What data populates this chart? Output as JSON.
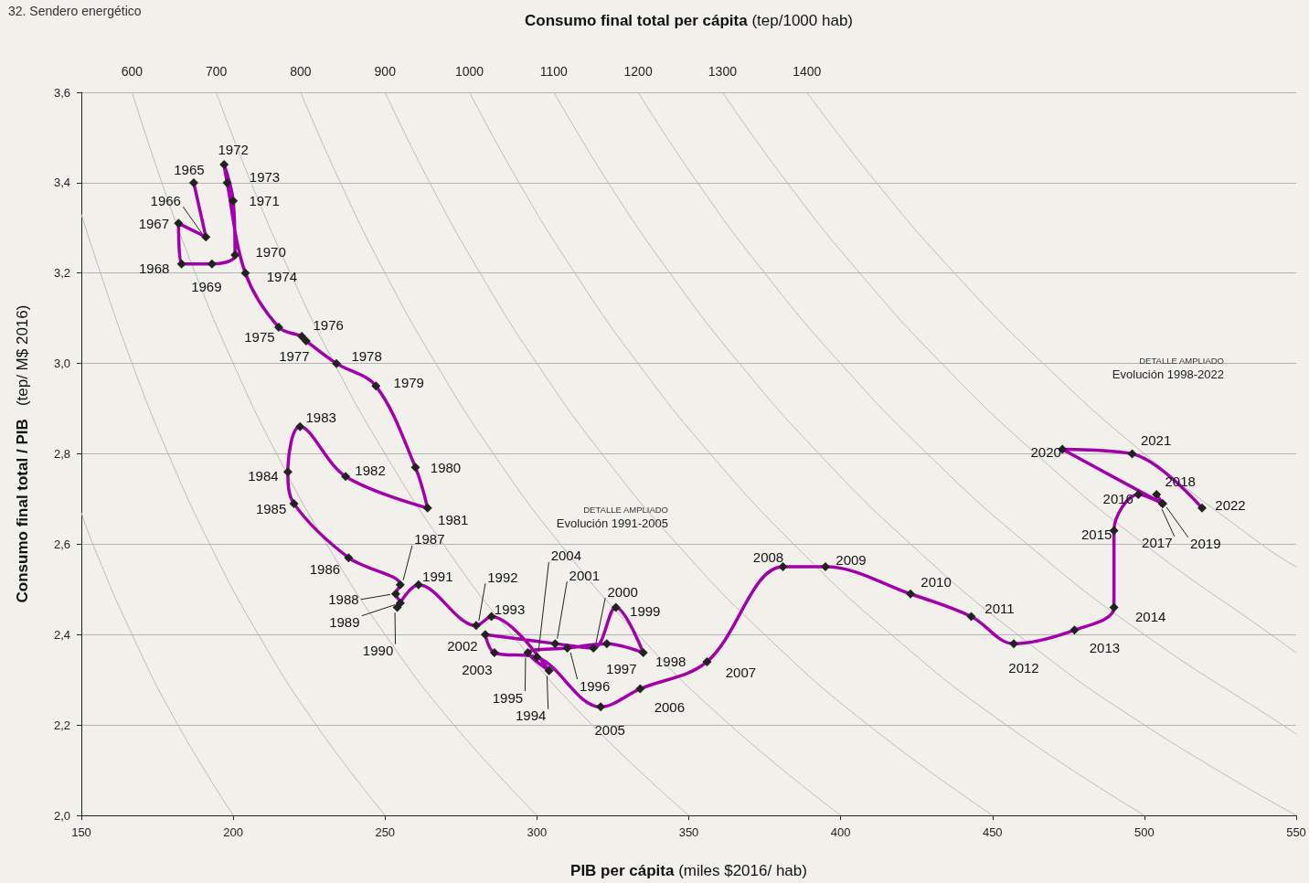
{
  "chart_data": {
    "type": "line",
    "title": "32. Sendero energético",
    "xlabel": "PIB per cápita (miles $2016/ hab)",
    "ylabel": "Consumo final total / PIB   (tep/ M$ 2016)",
    "x2label": "Consumo final total per cápita (tep/1000 hab)",
    "xlim": [
      150,
      550
    ],
    "xticks": [
      150,
      200,
      250,
      300,
      350,
      400,
      450,
      500,
      550
    ],
    "x2lim": [
      540,
      1980
    ],
    "x2ticks": [
      600,
      700,
      800,
      900,
      1000,
      1100,
      1200,
      1300,
      1400
    ],
    "ylim": [
      2.0,
      3.6
    ],
    "yticks": [
      {
        "value": 2.0,
        "label": "2,0"
      },
      {
        "value": 2.2,
        "label": "2,2"
      },
      {
        "value": 2.4,
        "label": "2,4"
      },
      {
        "value": 2.6,
        "label": "2,6"
      },
      {
        "value": 2.8,
        "label": "2,8"
      },
      {
        "value": 3.0,
        "label": "3,0"
      },
      {
        "value": 3.2,
        "label": "3,2"
      },
      {
        "value": 3.4,
        "label": "3,4"
      },
      {
        "value": 3.6,
        "label": "3,6"
      }
    ],
    "grid": "y",
    "marker": "diamond",
    "line_style": "solid",
    "annotations": [
      "DETALLE AMPLIADO\nEvolución 1991-2005",
      "DETALLE AMPLIADO\nEvolución 1998-2022",
      {
        "text": "1965",
        "x": 187,
        "y": 3.4
      },
      {
        "text": "1966",
        "x": 191,
        "y": 3.28
      },
      {
        "text": "1967",
        "x": 182,
        "y": 3.31
      },
      {
        "text": "1968",
        "x": 183,
        "y": 3.22
      },
      {
        "text": "1969",
        "x": 193,
        "y": 3.22
      },
      {
        "text": "1970",
        "x": 200.6,
        "y": 3.24
      },
      {
        "text": "1971",
        "x": 200,
        "y": 3.36
      },
      {
        "text": "1972",
        "x": 197,
        "y": 3.44
      },
      {
        "text": "1973",
        "x": 198,
        "y": 3.4
      },
      {
        "text": "1974",
        "x": 204,
        "y": 3.2
      },
      {
        "text": "1975",
        "x": 215,
        "y": 3.08
      },
      {
        "text": "1976",
        "x": 222.6,
        "y": 3.06
      },
      {
        "text": "1977",
        "x": 224,
        "y": 3.05
      },
      {
        "text": "1978",
        "x": 234,
        "y": 3.0
      },
      {
        "text": "1979",
        "x": 247,
        "y": 2.95
      },
      {
        "text": "1980",
        "x": 260,
        "y": 2.77
      },
      {
        "text": "1981",
        "x": 264,
        "y": 2.68
      },
      {
        "text": "1982",
        "x": 237,
        "y": 2.75
      },
      {
        "text": "1983",
        "x": 222,
        "y": 2.86
      },
      {
        "text": "1984",
        "x": 218,
        "y": 2.76
      },
      {
        "text": "1985",
        "x": 220,
        "y": 2.69
      },
      {
        "text": "1986",
        "x": 238,
        "y": 2.57
      },
      {
        "text": "1987",
        "x": 255,
        "y": 2.51
      },
      {
        "text": "1988",
        "x": 253.5,
        "y": 2.49
      },
      {
        "text": "1989",
        "x": 255,
        "y": 2.47
      },
      {
        "text": "1990",
        "x": 254,
        "y": 2.46
      },
      {
        "text": "1991",
        "x": 261,
        "y": 2.51
      },
      {
        "text": "1992",
        "x": 280,
        "y": 2.42
      },
      {
        "text": "1993",
        "x": 285,
        "y": 2.44
      },
      {
        "text": "1994",
        "x": 304,
        "y": 2.32
      },
      {
        "text": "1995",
        "x": 297,
        "y": 2.36
      },
      {
        "text": "1996",
        "x": 310,
        "y": 2.37
      },
      {
        "text": "1997",
        "x": 323,
        "y": 2.38
      },
      {
        "text": "1998",
        "x": 335,
        "y": 2.36
      },
      {
        "text": "1999",
        "x": 326,
        "y": 2.46
      },
      {
        "text": "2000",
        "x": 318.6,
        "y": 2.37
      },
      {
        "text": "2001",
        "x": 306,
        "y": 2.38
      },
      {
        "text": "2002",
        "x": 283,
        "y": 2.4
      },
      {
        "text": "2003",
        "x": 286,
        "y": 2.36
      },
      {
        "text": "2004",
        "x": 300,
        "y": 2.35
      },
      {
        "text": "2005",
        "x": 321,
        "y": 2.24
      },
      {
        "text": "2006",
        "x": 334,
        "y": 2.28
      },
      {
        "text": "2007",
        "x": 356,
        "y": 2.34
      },
      {
        "text": "2008",
        "x": 381,
        "y": 2.55
      },
      {
        "text": "2009",
        "x": 395,
        "y": 2.55
      },
      {
        "text": "2010",
        "x": 423,
        "y": 2.49
      },
      {
        "text": "2011",
        "x": 443,
        "y": 2.44
      },
      {
        "text": "2012",
        "x": 457,
        "y": 2.38
      },
      {
        "text": "2013",
        "x": 477,
        "y": 2.41
      },
      {
        "text": "2014",
        "x": 490,
        "y": 2.46
      },
      {
        "text": "2015",
        "x": 490,
        "y": 2.63
      },
      {
        "text": "2016",
        "x": 498,
        "y": 2.71
      },
      {
        "text": "2017",
        "x": 506,
        "y": 2.69
      },
      {
        "text": "2018",
        "x": 504,
        "y": 2.71
      },
      {
        "text": "2019",
        "x": 506,
        "y": 2.69
      },
      {
        "text": "2020",
        "x": 473,
        "y": 2.81
      },
      {
        "text": "2021",
        "x": 496,
        "y": 2.8
      },
      {
        "text": "2022",
        "x": 519,
        "y": 2.68
      }
    ],
    "series": [
      {
        "color": "#bbbbbb",
        "marker": "none",
        "x": [
          150,
          153.8,
          166.7,
          181.8,
          200
        ],
        "values": [
          2.67,
          2.6,
          2.4,
          2.2,
          2.0
        ]
      },
      {
        "color": "#bbbbbb",
        "marker": "none",
        "x": [
          150,
          156.3,
          166.7,
          178.6,
          192.3,
          208.3,
          227.3,
          250
        ],
        "values": [
          3.33,
          3.2,
          3.0,
          2.8,
          2.6,
          2.4,
          2.2,
          2.0
        ]
      },
      {
        "color": "#bbbbbb",
        "marker": "none",
        "x": [
          166.7,
          176.5,
          187.5,
          200,
          214.3,
          230.8,
          250,
          272.7,
          300
        ],
        "values": [
          3.6,
          3.4,
          3.2,
          3.0,
          2.8,
          2.6,
          2.4,
          2.2,
          2.0
        ]
      },
      {
        "color": "#bbbbbb",
        "marker": "none",
        "x": [
          194.4,
          205.9,
          218.8,
          233.3,
          250,
          269.2,
          291.7,
          318.2,
          350
        ],
        "values": [
          3.6,
          3.4,
          3.2,
          3.0,
          2.8,
          2.6,
          2.4,
          2.2,
          2.0
        ]
      },
      {
        "color": "#bbbbbb",
        "marker": "none",
        "x": [
          222.2,
          235.3,
          250,
          266.7,
          285.7,
          307.7,
          333.3,
          363.6,
          400
        ],
        "values": [
          3.6,
          3.4,
          3.2,
          3.0,
          2.8,
          2.6,
          2.4,
          2.2,
          2.0
        ]
      },
      {
        "color": "#bbbbbb",
        "marker": "none",
        "x": [
          250,
          264.7,
          281.3,
          300,
          321.4,
          346.2,
          375,
          409.1,
          450
        ],
        "values": [
          3.6,
          3.4,
          3.2,
          3.0,
          2.8,
          2.6,
          2.4,
          2.2,
          2.0
        ]
      },
      {
        "color": "#bbbbbb",
        "marker": "none",
        "x": [
          277.8,
          294.1,
          312.5,
          333.3,
          357.1,
          384.6,
          416.7,
          454.5,
          500
        ],
        "values": [
          3.6,
          3.4,
          3.2,
          3.0,
          2.8,
          2.6,
          2.4,
          2.2,
          2.0
        ]
      },
      {
        "color": "#bbbbbb",
        "marker": "none",
        "x": [
          305.6,
          323.5,
          343.8,
          366.7,
          392.9,
          423.1,
          458.3,
          500,
          550
        ],
        "values": [
          3.6,
          3.4,
          3.2,
          3.0,
          2.8,
          2.6,
          2.4,
          2.2,
          2.0
        ]
      },
      {
        "color": "#bbbbbb",
        "marker": "none",
        "x": [
          333.3,
          352.9,
          375,
          400,
          428.6,
          461.5,
          500,
          545.5,
          550
        ],
        "values": [
          3.6,
          3.4,
          3.2,
          3.0,
          2.8,
          2.6,
          2.4,
          2.2,
          2.18
        ]
      },
      {
        "color": "#bbbbbb",
        "marker": "none",
        "x": [
          361.1,
          382.4,
          406.3,
          433.3,
          464.3,
          500,
          541.7,
          550
        ],
        "values": [
          3.6,
          3.4,
          3.2,
          3.0,
          2.8,
          2.6,
          2.4,
          2.36
        ]
      },
      {
        "color": "#bbbbbb",
        "marker": "none",
        "x": [
          388.9,
          411.8,
          437.5,
          466.7,
          500,
          538.5,
          550
        ],
        "values": [
          3.6,
          3.4,
          3.2,
          3.0,
          2.8,
          2.6,
          2.55
        ]
      },
      {
        "color": "#a100ab",
        "x": [
          187,
          191,
          182,
          183,
          193,
          200.6,
          200,
          197,
          198,
          204,
          215,
          222.6,
          224,
          234,
          247,
          260,
          264,
          237,
          222,
          218,
          220,
          238,
          255,
          253.5,
          255,
          254,
          261,
          280,
          285,
          304,
          297,
          310,
          323,
          335,
          326,
          318.6,
          306,
          283,
          286,
          300,
          321,
          334,
          356,
          381,
          395,
          423,
          443,
          457,
          477,
          490,
          490,
          498,
          506,
          504,
          506,
          473,
          496,
          519
        ],
        "values": [
          3.4,
          3.28,
          3.31,
          3.22,
          3.22,
          3.24,
          3.36,
          3.44,
          3.4,
          3.2,
          3.08,
          3.06,
          3.05,
          3.0,
          2.95,
          2.77,
          2.68,
          2.75,
          2.86,
          2.76,
          2.69,
          2.57,
          2.51,
          2.49,
          2.47,
          2.46,
          2.51,
          2.42,
          2.44,
          2.32,
          2.36,
          2.37,
          2.38,
          2.36,
          2.46,
          2.37,
          2.38,
          2.4,
          2.36,
          2.35,
          2.24,
          2.28,
          2.34,
          2.55,
          2.55,
          2.49,
          2.44,
          2.38,
          2.41,
          2.46,
          2.63,
          2.71,
          2.69,
          2.71,
          2.69,
          2.81,
          2.8,
          2.68
        ]
      }
    ]
  }
}
